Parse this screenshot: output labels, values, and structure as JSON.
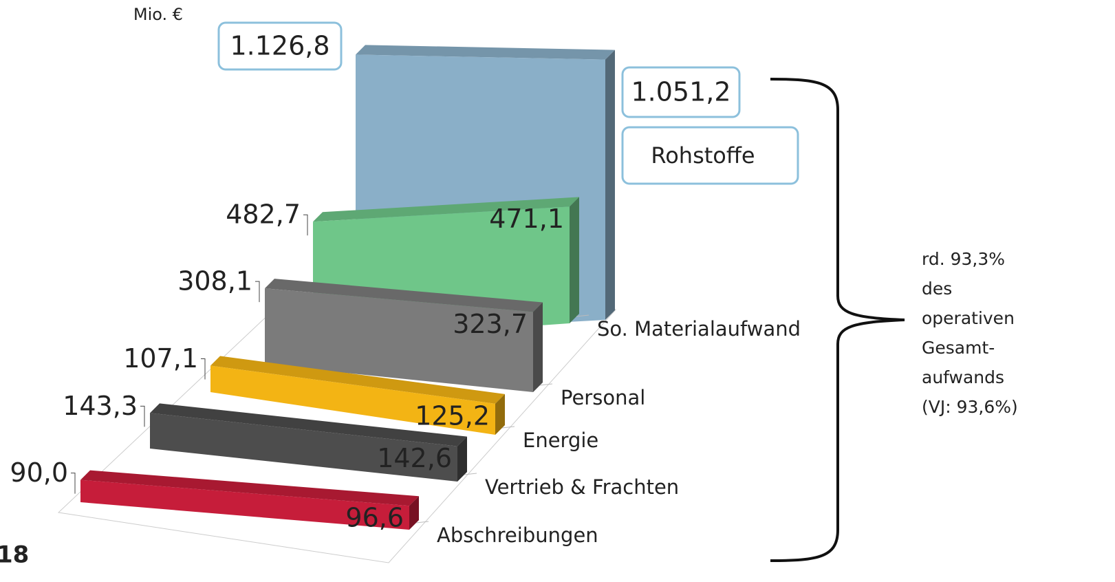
{
  "chart_data": {
    "type": "bar3d",
    "unit": "Mio. €",
    "categories": [
      "Abschreibungen",
      "Vertrieb & Frachten",
      "Energie",
      "Personal",
      "So. Materialaufwand",
      "Rohstoffe"
    ],
    "colors": [
      "#c61d3a",
      "#4d4d4d",
      "#f3b414",
      "#7b7b7b",
      "#6fc689",
      "#8aafc8"
    ],
    "series": [
      {
        "values": [
          90.0,
          143.3,
          107.1,
          308.1,
          482.7,
          1126.8
        ],
        "value_labels": [
          "90,0",
          "143,3",
          "107,1",
          "308,1",
          "482,7",
          "1.126,8"
        ]
      },
      {
        "values": [
          96.6,
          142.6,
          125.2,
          323.7,
          471.1,
          1051.2
        ],
        "value_labels": [
          "96,6",
          "142,6",
          "125,2",
          "323,7",
          "471,1",
          "1.051,2"
        ]
      }
    ],
    "annotation": [
      "rd. 93,3%",
      "des",
      "operativen",
      "Gesamt-",
      "aufwands",
      "(VJ: 93,6%)"
    ],
    "footer": "18"
  }
}
